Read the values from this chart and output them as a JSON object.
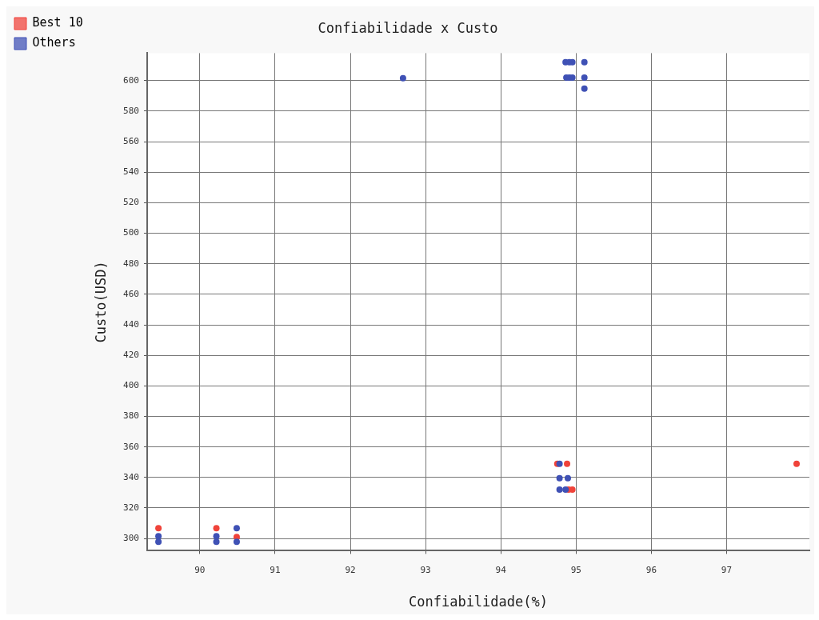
{
  "chart_data": {
    "type": "scatter",
    "title": "Confiabilidade x Custo",
    "xlabel": "Confiabilidade(%)",
    "ylabel": "Custo(USD)",
    "xlim": [
      89.3,
      98.1
    ],
    "ylim": [
      292,
      618
    ],
    "xticks": [
      90,
      91,
      92,
      93,
      94,
      95,
      96,
      97
    ],
    "yticks": [
      300,
      320,
      340,
      360,
      380,
      400,
      420,
      440,
      460,
      480,
      500,
      520,
      540,
      560,
      580,
      600
    ],
    "grid": true,
    "legend": "top left",
    "marker": "circle",
    "series": [
      {
        "name": "Best 10",
        "color": "#f0433a",
        "x": [
          89.45,
          90.22,
          90.49,
          94.75,
          94.88,
          94.9,
          94.95,
          97.93
        ],
        "values": [
          306.8,
          306.8,
          301,
          349,
          349,
          332,
          332,
          349
        ]
      },
      {
        "name": "Others",
        "color": "#3f51b5",
        "x": [
          89.45,
          89.45,
          90.22,
          90.22,
          90.49,
          90.49,
          92.7,
          94.86,
          94.91,
          94.95,
          95.11,
          94.87,
          94.91,
          94.95,
          95.11,
          95.11,
          94.78,
          94.78,
          94.89,
          94.78,
          94.86
        ],
        "values": [
          301.5,
          297.9,
          301.5,
          297.9,
          306.8,
          297.9,
          601.6,
          612,
          612,
          612,
          612,
          602,
          602,
          602,
          602,
          594.8,
          349,
          339.5,
          339.5,
          332,
          332
        ]
      }
    ]
  }
}
